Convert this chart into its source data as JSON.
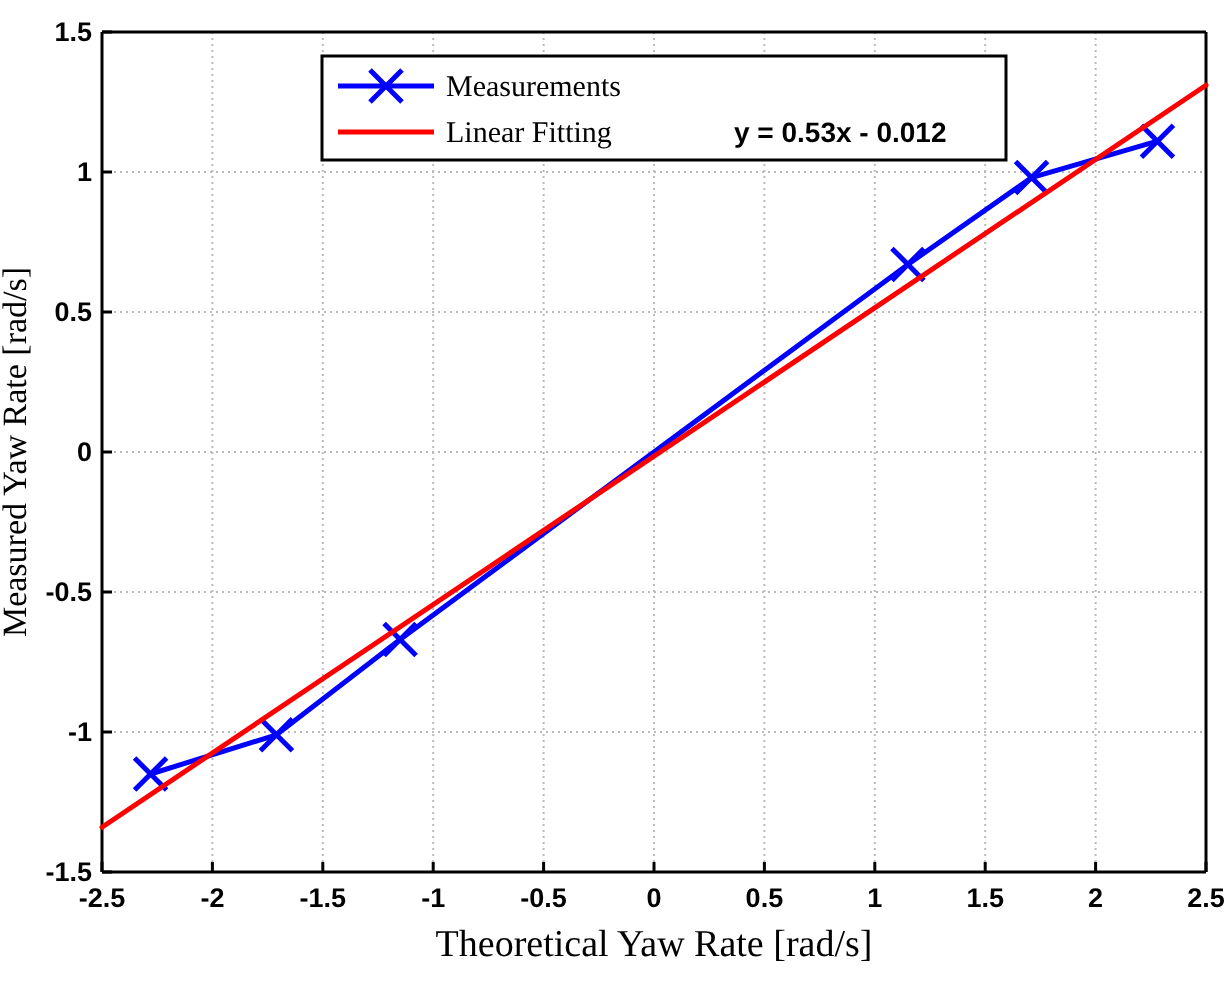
{
  "chart_data": {
    "type": "line",
    "xlabel": "Theoretical Yaw Rate [rad/s]",
    "ylabel": "Measured Yaw Rate [rad/s]",
    "xlim": [
      -2.5,
      2.5
    ],
    "xticks": [
      -2.5,
      -2,
      -1.5,
      -1,
      -0.5,
      0,
      0.5,
      1,
      1.5,
      2,
      2.5
    ],
    "ylim": [
      -1.5,
      1.5
    ],
    "yticks": [
      -1.5,
      -1,
      -0.5,
      0,
      0.5,
      1,
      1.5
    ],
    "grid": true,
    "legend": "top left",
    "annotations": [
      "y = 0.53x - 0.012"
    ],
    "series": [
      {
        "name": "Measurements",
        "color": "#0000ff",
        "marker": "cross",
        "x": [
          -2.28,
          -1.71,
          -1.15,
          1.15,
          1.71,
          2.28
        ],
        "values": [
          -1.15,
          -1.01,
          -0.67,
          0.67,
          0.98,
          1.11
        ]
      },
      {
        "name": "Linear Fitting",
        "color": "#ff0000",
        "marker": "none",
        "x": [
          -2.5,
          2.5
        ],
        "values": [
          -1.34,
          1.31
        ]
      }
    ]
  }
}
